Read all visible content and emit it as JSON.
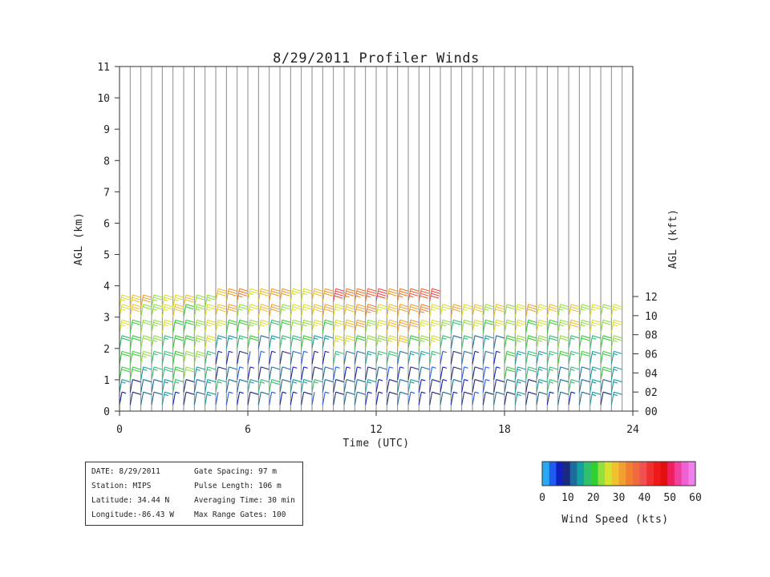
{
  "chart_data": {
    "type": "wind-barb-profile",
    "title": "8/29/2011 Profiler Winds",
    "xlabel": "Time (UTC)",
    "ylabel_left": "AGL (km)",
    "ylabel_right": "AGL (kft)",
    "xlim": [
      0,
      24
    ],
    "ylim_km": [
      0,
      11
    ],
    "ylim_kft": [
      0,
      36.09
    ],
    "xticks": [
      0,
      6,
      12,
      18,
      24
    ],
    "yticks_left": [
      0,
      1,
      2,
      3,
      4,
      5,
      6,
      7,
      8,
      9,
      10,
      11
    ],
    "yticks_right": [
      "00",
      "02",
      "04",
      "06",
      "08",
      "10",
      "12"
    ],
    "profile_times_utc_step": 0.5,
    "barb_units": "kts",
    "grid": "vertical lines at each profile time",
    "speed_bands_kts": [
      {
        "time_from": 0,
        "time_to": 4.5,
        "levels": [
          [
            0.2,
            10
          ],
          [
            0.6,
            12
          ],
          [
            1.0,
            18
          ],
          [
            1.5,
            20
          ],
          [
            2.0,
            21
          ],
          [
            2.5,
            23
          ],
          [
            3.0,
            25
          ],
          [
            3.3,
            26
          ]
        ]
      },
      {
        "time_from": 4.5,
        "time_to": 10,
        "levels": [
          [
            0.2,
            6
          ],
          [
            0.6,
            14
          ],
          [
            1.0,
            8
          ],
          [
            1.5,
            6
          ],
          [
            2.0,
            16
          ],
          [
            2.5,
            22
          ],
          [
            3.0,
            27
          ],
          [
            3.5,
            29
          ]
        ]
      },
      {
        "time_from": 10,
        "time_to": 15,
        "levels": [
          [
            0.2,
            8
          ],
          [
            0.6,
            10
          ],
          [
            1.0,
            7
          ],
          [
            1.5,
            14
          ],
          [
            2.0,
            24
          ],
          [
            2.5,
            28
          ],
          [
            3.0,
            30
          ],
          [
            3.5,
            36
          ]
        ]
      },
      {
        "time_from": 15,
        "time_to": 18,
        "levels": [
          [
            0.2,
            8
          ],
          [
            0.6,
            6
          ],
          [
            1.0,
            7
          ],
          [
            1.5,
            8
          ],
          [
            2.0,
            14
          ],
          [
            2.5,
            22
          ],
          [
            3.0,
            27
          ]
        ]
      },
      {
        "time_from": 18,
        "time_to": 23.5,
        "levels": [
          [
            0.2,
            10
          ],
          [
            0.6,
            13
          ],
          [
            1.0,
            15
          ],
          [
            1.5,
            17
          ],
          [
            2.0,
            20
          ],
          [
            2.5,
            24
          ],
          [
            3.0,
            26
          ]
        ]
      }
    ],
    "colorbar": {
      "label": "Wind Speed (kts)",
      "tick_labels": [
        "0",
        "10",
        "20",
        "30",
        "40",
        "50",
        "60"
      ],
      "range": [
        0,
        60
      ],
      "colors": [
        "#29a9f2",
        "#1e5cf0",
        "#1020c0",
        "#1a2a80",
        "#1b6e9a",
        "#14a0a0",
        "#30c070",
        "#30d030",
        "#90e040",
        "#d8e030",
        "#f0c030",
        "#f0a030",
        "#f08030",
        "#f06a40",
        "#f05050",
        "#f03030",
        "#f01818",
        "#e01010",
        "#f02060",
        "#f040a0",
        "#f060d0",
        "#f080f0"
      ]
    }
  },
  "info": {
    "date_label": "DATE:",
    "date_value": "8/29/2011",
    "station_label": "Station:",
    "station_value": "MIPS",
    "latitude_label": "Latitude:",
    "latitude_value": "34.44 N",
    "longitude_label": "Longitude:",
    "longitude_value": "-86.43 W",
    "gate_spacing_label": "Gate Spacing:",
    "gate_spacing_value": "97 m",
    "pulse_length_label": "Pulse Length:",
    "pulse_length_value": "106 m",
    "averaging_time_label": "Averaging Time:",
    "averaging_time_value": "30 min",
    "max_range_gates_label": "Max Range Gates:",
    "max_range_gates_value": "100"
  }
}
